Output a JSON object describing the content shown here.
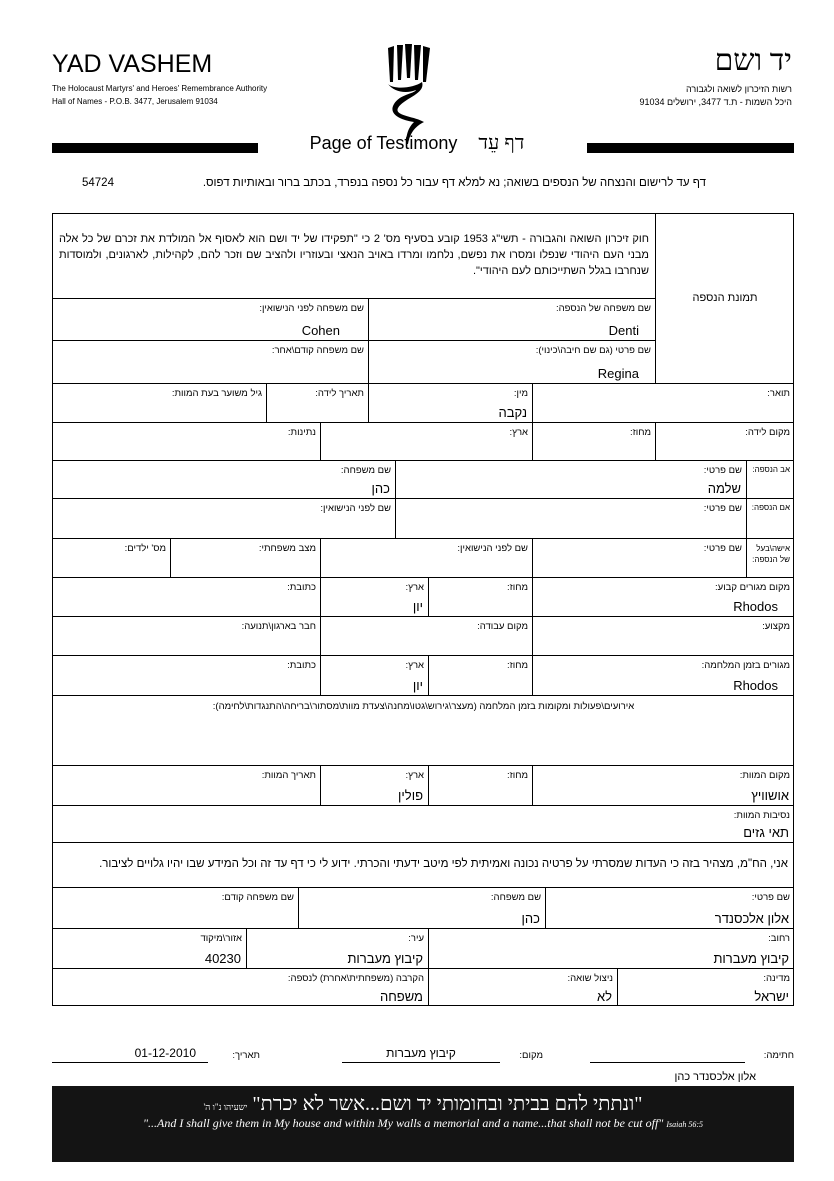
{
  "header": {
    "org_en": "YAD VASHEM",
    "org_en_sub1": "The Holocaust Martyrs' and Heroes' Remembrance Authority",
    "org_en_sub2": "Hall of Names - P.O.B. 3477, Jerusalem 91034",
    "org_he": "יד ושם",
    "org_he_sub1": "רשות הזיכרון לשואה ולגבורה",
    "org_he_sub2": "היכל השמות - ת.ד 3477, ירושלים 91034",
    "title_en": "Page of Testimony",
    "title_he": "דף עֵד",
    "intro": "דף עד לרישום והנצחה של הנספים בשואה; נא למלא דף עבור כל נספה בנפרד, בכתב ברור ובאותיות דפוס.",
    "form_number": "54724"
  },
  "law_text": "חוק זיכרון השואה והגבורה - תשי\"ג 1953 קובע בסעיף מס' 2 כי \"תפקידו של יד ושם הוא לאסוף אל המולדת את זכרם של כל אלה מבני העם היהודי שנפלו ומסרו את נפשם, נלחמו ומרדו באויב הנאצי ובעוזריו ולהציב שם וזכר להם, לקהילות, לארגונים, ולמוסדות שנחרבו בגלל השתייכותם לעם היהודי\".",
  "photo_label": "תמונת הנספה",
  "victim": {
    "surname": {
      "label": "שם משפחה של הנספה:",
      "value": "Denti"
    },
    "maiden_name": {
      "label": "שם משפחה לפני הנישואין:",
      "value": "Cohen"
    },
    "first_name": {
      "label": "שם פרטי (גם שם חיבה\\כינוי):",
      "value": "Regina"
    },
    "previous_surname": {
      "label": "שם משפחה קודם\\אחר:",
      "value": ""
    },
    "title": {
      "label": "תואר:",
      "value": ""
    },
    "gender": {
      "label": "מין:",
      "value": "נקבה"
    },
    "birth_date": {
      "label": "תאריך לידה:",
      "value": ""
    },
    "age_at_death": {
      "label": "גיל משוער בעת המוות:",
      "value": ""
    },
    "birth_place": {
      "label": "מקום לידה:",
      "value": ""
    },
    "birth_region": {
      "label": "מחוז:",
      "value": ""
    },
    "birth_country": {
      "label": "ארץ:",
      "value": ""
    },
    "citizenship": {
      "label": "נתינות:",
      "value": ""
    }
  },
  "father": {
    "side_label": "אב הנספה:",
    "first_name": {
      "label": "שם פרטי:",
      "value": "שלמה"
    },
    "surname": {
      "label": "שם משפחה:",
      "value": "כהן"
    }
  },
  "mother": {
    "side_label": "אם הנספה:",
    "first_name": {
      "label": "שם פרטי:",
      "value": ""
    },
    "maiden_name": {
      "label": "שם לפני הנישואין:",
      "value": ""
    }
  },
  "spouse": {
    "side_label": "אישה\\בעל של הנספה:",
    "first_name": {
      "label": "שם פרטי:",
      "value": ""
    },
    "maiden_name": {
      "label": "שם לפני הנישואין:",
      "value": ""
    },
    "marital_status": {
      "label": "מצב משפחתי:",
      "value": ""
    },
    "children": {
      "label": "מס' ילדים:",
      "value": ""
    }
  },
  "residence": {
    "place": {
      "label": "מקום מגורים קבוע:",
      "value": "Rhodos"
    },
    "region": {
      "label": "מחוז:",
      "value": ""
    },
    "country": {
      "label": "ארץ:",
      "value": "יון"
    },
    "address": {
      "label": "כתובת:",
      "value": ""
    }
  },
  "work": {
    "profession": {
      "label": "מקצוע:",
      "value": ""
    },
    "workplace": {
      "label": "מקום עבודה:",
      "value": ""
    },
    "organization": {
      "label": "חבר בארגון\\תנועה:",
      "value": ""
    }
  },
  "wartime": {
    "place": {
      "label": "מגורים בזמן המלחמה:",
      "value": "Rhodos"
    },
    "region": {
      "label": "מחוז:",
      "value": ""
    },
    "country": {
      "label": "ארץ:",
      "value": "יון"
    },
    "address": {
      "label": "כתובת:",
      "value": ""
    }
  },
  "events": {
    "label": "אירועים\\פעולות ומקומות בזמן המלחמה (מעצר\\גירוש\\גטו\\מחנה\\צעדת מוות\\מסתור\\בריחה\\התנגדות\\לחימה):",
    "value": ""
  },
  "death": {
    "place": {
      "label": "מקום המוות:",
      "value": "אושוויץ"
    },
    "region": {
      "label": "מחוז:",
      "value": ""
    },
    "country": {
      "label": "ארץ:",
      "value": "פולין"
    },
    "date": {
      "label": "תאריך המוות:",
      "value": ""
    },
    "circumstances": {
      "label": "נסיבות המוות:",
      "value": "תאי גזים"
    }
  },
  "declaration": "אני, הח\"מ, מצהיר בזה כי העדות שמסרתי על פרטיה נכונה ואמיתית לפי מיטב ידעתי והכרתי. ידוע לי כי דף עד זה וכל המידע שבו יהיו גלויים לציבור.",
  "submitter": {
    "first_name": {
      "label": "שם פרטי:",
      "value": "אלון אלכסנדר"
    },
    "surname": {
      "label": "שם משפחה:",
      "value": "כהן"
    },
    "previous_surname": {
      "label": "שם משפחה קודם:",
      "value": ""
    },
    "street": {
      "label": "רחוב:",
      "value": "קיבוץ מעברות"
    },
    "city": {
      "label": "עיר:",
      "value": "קיבוץ מעברות"
    },
    "zip": {
      "label": "אזור\\מיקוד",
      "value": "40230"
    },
    "country": {
      "label": "מדינה:",
      "value": "ישראל"
    },
    "survivor": {
      "label": "ניצול שואה:",
      "value": "לא"
    },
    "relationship": {
      "label": "הקרבה (משפחתית\\אחרת) לנספה:",
      "value": "משפחה"
    }
  },
  "signature": {
    "signature_label": "חתימה:",
    "signer_name": "אלון אלכסנדר כהן",
    "place_label": "מקום:",
    "place_value": "קיבוץ מעברות",
    "date_label": "תאריך:",
    "date_value": "01-12-2010"
  },
  "banner": {
    "quote_he": "\"ונתתי להם בביתי ובחומותי יד ושם...אשר לא יכרת\"",
    "source_he": "ישעיהו נ\"ו ה'",
    "quote_en": "\"...And I shall give them in My house and within My walls a memorial and a name...that shall not be cut off\"",
    "source_en": "Isaiah 56:5"
  }
}
